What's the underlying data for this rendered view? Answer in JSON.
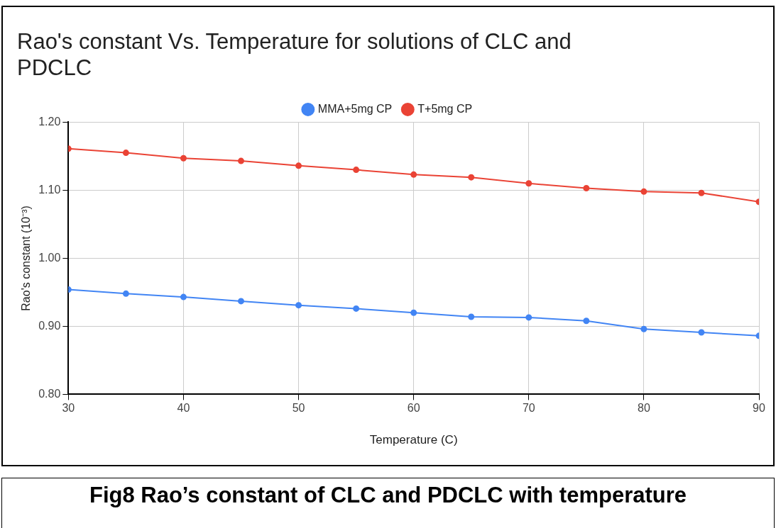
{
  "chart_data": {
    "type": "line",
    "title": "Rao's constant Vs. Temperature for solutions of CLC and PDCLC",
    "xlabel": "Temperature (C)",
    "ylabel": "Rao's constant (10⁻³)",
    "x": [
      30,
      35,
      40,
      45,
      50,
      55,
      60,
      65,
      70,
      75,
      80,
      85,
      90
    ],
    "series": [
      {
        "name": "MMA+5mg CP",
        "color": "#4285f4",
        "values": [
          0.954,
          0.948,
          0.943,
          0.937,
          0.931,
          0.926,
          0.92,
          0.914,
          0.913,
          0.908,
          0.896,
          0.891,
          0.886
        ]
      },
      {
        "name": "T+5mg CP",
        "color": "#ea4335",
        "values": [
          1.161,
          1.155,
          1.147,
          1.143,
          1.136,
          1.13,
          1.123,
          1.119,
          1.11,
          1.103,
          1.098,
          1.096,
          1.083
        ]
      }
    ],
    "xlim": [
      30,
      90
    ],
    "xticks": [
      30,
      40,
      50,
      60,
      70,
      80,
      90
    ],
    "ylim": [
      0.8,
      1.2
    ],
    "yticks": [
      {
        "value": 0.8,
        "label": "0.80"
      },
      {
        "value": 0.9,
        "label": "0.90"
      },
      {
        "value": 1.0,
        "label": "1.00"
      },
      {
        "value": 1.1,
        "label": "1.10"
      },
      {
        "value": 1.2,
        "label": "1.20"
      }
    ],
    "grid": true,
    "legend": "top",
    "marker": "circle",
    "line_style": "solid",
    "annotations": [
      "Fig8 Rao’s constant of CLC and PDCLC with temperature"
    ]
  }
}
